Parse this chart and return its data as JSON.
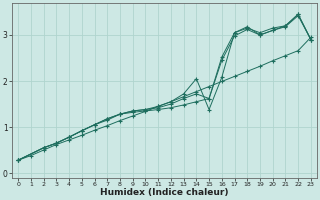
{
  "xlabel": "Humidex (Indice chaleur)",
  "xlim": [
    -0.5,
    23.5
  ],
  "ylim": [
    -0.1,
    3.7
  ],
  "xticks": [
    0,
    1,
    2,
    3,
    4,
    5,
    6,
    7,
    8,
    9,
    10,
    11,
    12,
    13,
    14,
    15,
    16,
    17,
    18,
    19,
    20,
    21,
    22,
    23
  ],
  "yticks": [
    0,
    1,
    2,
    3
  ],
  "bg_color": "#cde8e4",
  "grid_color": "#b0d4ce",
  "line_color": "#1e6e5e",
  "line1_x": [
    0,
    1,
    2,
    3,
    4,
    5,
    6,
    7,
    8,
    9,
    10,
    11,
    12,
    13,
    14,
    15,
    16,
    17,
    18,
    19,
    20,
    21,
    22,
    23
  ],
  "line1_y": [
    0.28,
    0.38,
    0.5,
    0.62,
    0.72,
    0.82,
    0.93,
    1.03,
    1.14,
    1.24,
    1.34,
    1.45,
    1.55,
    1.66,
    1.77,
    1.88,
    1.99,
    2.1,
    2.21,
    2.32,
    2.44,
    2.55,
    2.66,
    2.95
  ],
  "line2_x": [
    0,
    2,
    3,
    4,
    5,
    6,
    7,
    8,
    9,
    10,
    11,
    12,
    13,
    14,
    15,
    16,
    17,
    18,
    19,
    20,
    21,
    22,
    23
  ],
  "line2_y": [
    0.28,
    0.55,
    0.65,
    0.78,
    0.92,
    1.05,
    1.15,
    1.28,
    1.32,
    1.35,
    1.38,
    1.42,
    1.48,
    1.55,
    1.62,
    2.52,
    3.05,
    3.15,
    3.05,
    3.15,
    3.2,
    3.45,
    2.9
  ],
  "line3_x": [
    0,
    2,
    3,
    4,
    5,
    6,
    7,
    8,
    9,
    10,
    11,
    12,
    13,
    14,
    15,
    16,
    17,
    18,
    19,
    20,
    21,
    22,
    23
  ],
  "line3_y": [
    0.28,
    0.55,
    0.65,
    0.78,
    0.92,
    1.05,
    1.18,
    1.28,
    1.35,
    1.38,
    1.42,
    1.5,
    1.62,
    1.72,
    1.62,
    2.45,
    2.98,
    3.12,
    3.0,
    3.1,
    3.18,
    3.42,
    2.9
  ],
  "line4_x": [
    0,
    2,
    3,
    4,
    5,
    6,
    7,
    8,
    9,
    10,
    11,
    12,
    13,
    14,
    15,
    16,
    17,
    18,
    19,
    20,
    21,
    22,
    23
  ],
  "line4_y": [
    0.28,
    0.55,
    0.65,
    0.78,
    0.92,
    1.05,
    1.18,
    1.28,
    1.35,
    1.38,
    1.45,
    1.55,
    1.72,
    2.05,
    1.38,
    2.08,
    3.05,
    3.18,
    3.0,
    3.1,
    3.2,
    3.45,
    2.9
  ]
}
